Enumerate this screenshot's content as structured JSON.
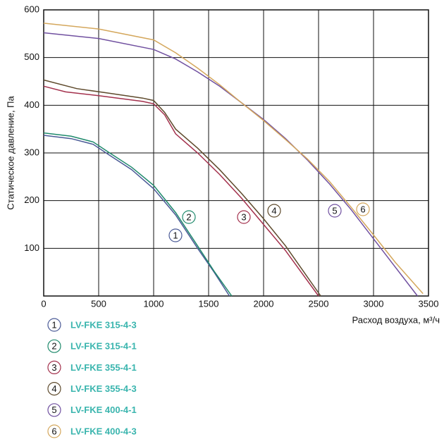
{
  "chart_data": {
    "type": "line",
    "y_label": "Статическое давление, Па",
    "x_label": "Расход воздуха, м³/ч",
    "xlim": [
      0,
      3500
    ],
    "xticks": [
      0,
      500,
      1000,
      1500,
      2000,
      2500,
      3000,
      3500
    ],
    "ylim": [
      0,
      600
    ],
    "yticks": [
      100,
      200,
      300,
      400,
      500,
      600
    ],
    "grid": true,
    "series": [
      {
        "name": "LV-FKE 315-4-3",
        "label": "1",
        "color": "#4a5a96",
        "x": [
          0,
          250,
          450,
          600,
          800,
          1000,
          1200,
          1400,
          1550,
          1690
        ],
        "values": [
          337,
          330,
          318,
          295,
          265,
          225,
          170,
          100,
          50,
          0
        ]
      },
      {
        "name": "LV-FKE 315-4-1",
        "label": "2",
        "color": "#1f8a6c",
        "x": [
          0,
          250,
          450,
          600,
          800,
          1000,
          1200,
          1400,
          1550,
          1710
        ],
        "values": [
          342,
          335,
          323,
          300,
          270,
          232,
          175,
          105,
          52,
          0
        ]
      },
      {
        "name": "LV-FKE 355-4-1",
        "label": "3",
        "color": "#a3304c",
        "x": [
          0,
          200,
          500,
          900,
          1000,
          1100,
          1200,
          1400,
          1600,
          1800,
          2000,
          2200,
          2500
        ],
        "values": [
          440,
          428,
          420,
          408,
          403,
          380,
          340,
          300,
          255,
          205,
          150,
          95,
          0
        ]
      },
      {
        "name": "LV-FKE 355-4-3",
        "label": "4",
        "color": "#5e4a2c",
        "x": [
          0,
          300,
          600,
          900,
          1000,
          1100,
          1200,
          1400,
          1600,
          1800,
          2000,
          2200,
          2520
        ],
        "values": [
          453,
          435,
          425,
          415,
          410,
          385,
          350,
          310,
          265,
          215,
          162,
          105,
          0
        ]
      },
      {
        "name": "LV-FKE 400-4-1",
        "label": "5",
        "color": "#7050a0",
        "x": [
          0,
          500,
          1000,
          1200,
          1400,
          1600,
          1800,
          2000,
          2200,
          2400,
          2600,
          2800,
          3000,
          3200,
          3400
        ],
        "values": [
          552,
          540,
          517,
          497,
          470,
          440,
          405,
          370,
          330,
          285,
          235,
          180,
          120,
          60,
          0
        ]
      },
      {
        "name": "LV-FKE 400-4-3",
        "label": "6",
        "color": "#d4a75c",
        "x": [
          0,
          500,
          1000,
          1200,
          1400,
          1600,
          1800,
          2000,
          2200,
          2400,
          2600,
          2800,
          3000,
          3200,
          3450
        ],
        "values": [
          572,
          560,
          537,
          510,
          478,
          443,
          405,
          368,
          328,
          287,
          240,
          185,
          128,
          70,
          5
        ]
      }
    ]
  }
}
